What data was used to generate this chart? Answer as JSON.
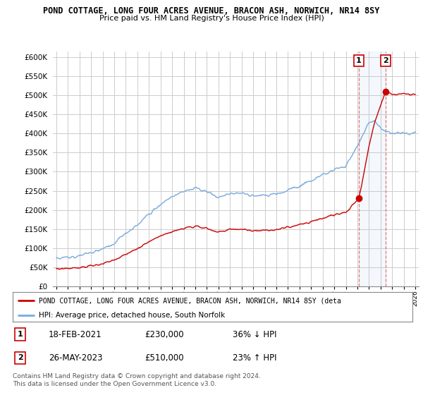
{
  "title": "POND COTTAGE, LONG FOUR ACRES AVENUE, BRACON ASH, NORWICH, NR14 8SY",
  "subtitle": "Price paid vs. HM Land Registry's House Price Index (HPI)",
  "ylabel_ticks": [
    "£0",
    "£50K",
    "£100K",
    "£150K",
    "£200K",
    "£250K",
    "£300K",
    "£350K",
    "£400K",
    "£450K",
    "£500K",
    "£550K",
    "£600K"
  ],
  "ytick_values": [
    0,
    50000,
    100000,
    150000,
    200000,
    250000,
    300000,
    350000,
    400000,
    450000,
    500000,
    550000,
    600000
  ],
  "ylim": [
    0,
    615000
  ],
  "xlim_start": 1994.7,
  "xlim_end": 2026.3,
  "legend_label_red": "POND COTTAGE, LONG FOUR ACRES AVENUE, BRACON ASH, NORWICH, NR14 8SY (deta",
  "legend_label_blue": "HPI: Average price, detached house, South Norfolk",
  "sale1_date": "18-FEB-2021",
  "sale1_price": "£230,000",
  "sale1_pct": "36% ↓ HPI",
  "sale2_date": "26-MAY-2023",
  "sale2_price": "£510,000",
  "sale2_pct": "23% ↑ HPI",
  "footer": "Contains HM Land Registry data © Crown copyright and database right 2024.\nThis data is licensed under the Open Government Licence v3.0.",
  "hpi_color": "#7aaadd",
  "sale_color": "#cc0000",
  "dashed_vline_color": "#dd6666",
  "grid_color": "#cccccc",
  "bg_color": "#ffffff",
  "sale1_year": 2021.12,
  "sale2_year": 2023.41,
  "sale1_value": 230000,
  "sale2_value": 510000
}
